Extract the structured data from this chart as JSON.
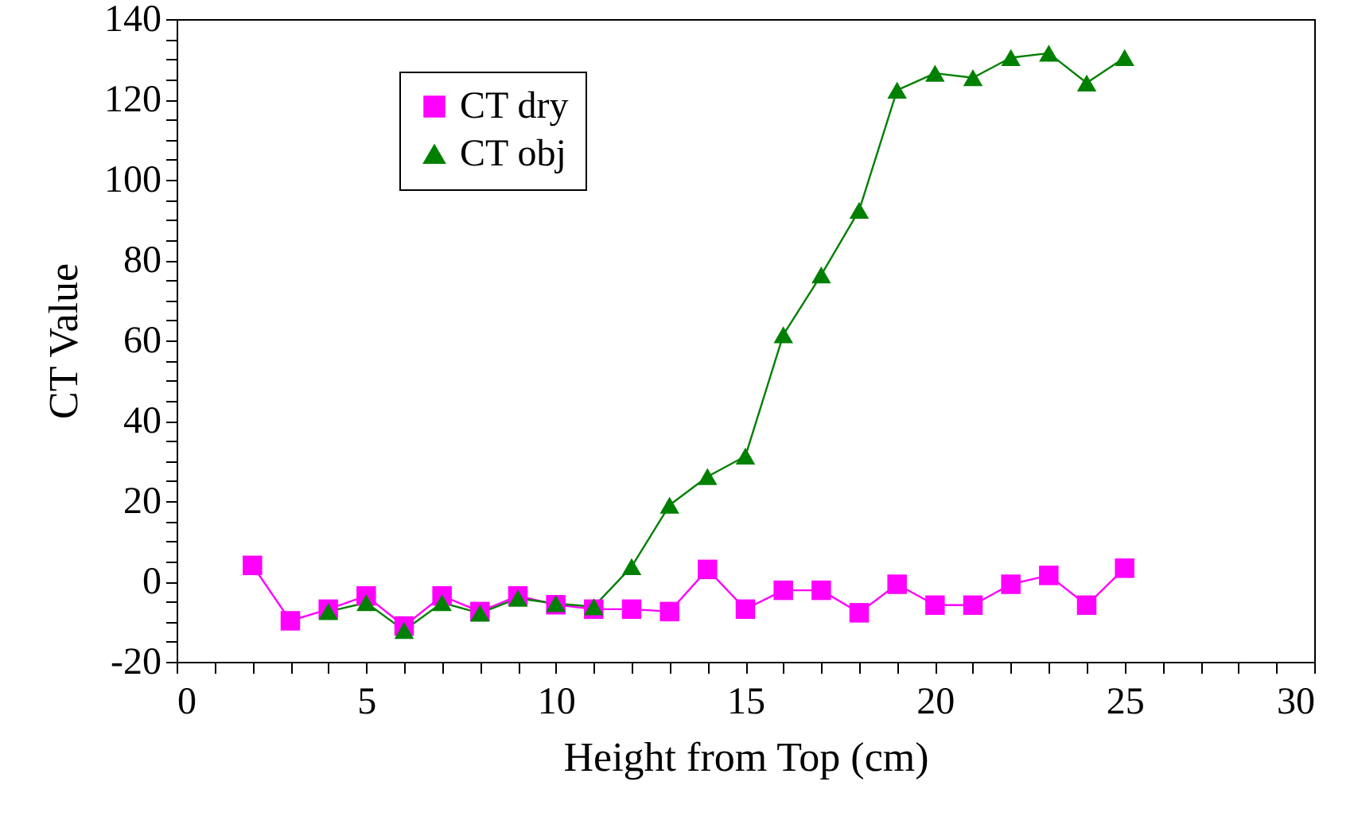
{
  "chart_data": {
    "type": "line",
    "xlabel": "Height  from Top (cm)",
    "ylabel": "CT Value",
    "x": [
      2,
      3,
      4,
      5,
      6,
      7,
      8,
      9,
      10,
      11,
      12,
      13,
      14,
      15,
      16,
      17,
      18,
      19,
      20,
      21,
      22,
      23,
      24,
      25
    ],
    "series": [
      {
        "name": "CT dry",
        "color": "#ff00ff",
        "marker": "square",
        "values": [
          4,
          -9.8,
          -6.9,
          -3.6,
          -11.1,
          -3.6,
          -7.5,
          -3.6,
          -5.8,
          -6.9,
          -6.9,
          -7.5,
          3,
          -6.9,
          -2.2,
          -2.2,
          -7.8,
          -0.7,
          -5.9,
          -5.9,
          -0.7,
          1.5,
          -5.9,
          3.3
        ]
      },
      {
        "name": "CT obj",
        "color": "#008000",
        "marker": "triangle",
        "values": [
          null,
          null,
          -7.5,
          -5.3,
          -12.2,
          -5.3,
          -7.9,
          -4.2,
          -5.5,
          -6.3,
          3.7,
          19,
          26.1,
          31.2,
          61.4,
          76.3,
          92.4,
          122.3,
          126.5,
          125.4,
          130.4,
          131.5,
          124.1,
          130.4
        ]
      }
    ],
    "xlim": [
      0,
      30
    ],
    "xticks": [
      0,
      {
        "value": 1,
        "label": null
      },
      {
        "value": 2,
        "label": null
      },
      {
        "value": 3,
        "label": null
      },
      {
        "value": 4,
        "label": null
      },
      5,
      {
        "value": 6,
        "label": null
      },
      {
        "value": 7,
        "label": null
      },
      {
        "value": 8,
        "label": null
      },
      {
        "value": 9,
        "label": null
      },
      10,
      {
        "value": 11,
        "label": null
      },
      {
        "value": 12,
        "label": null
      },
      {
        "value": 13,
        "label": null
      },
      {
        "value": 14,
        "label": null
      },
      15,
      {
        "value": 16,
        "label": null
      },
      {
        "value": 17,
        "label": null
      },
      {
        "value": 18,
        "label": null
      },
      {
        "value": 19,
        "label": null
      },
      20,
      {
        "value": 21,
        "label": null
      },
      {
        "value": 22,
        "label": null
      },
      {
        "value": 23,
        "label": null
      },
      {
        "value": 24,
        "label": null
      },
      25,
      {
        "value": 26,
        "label": null
      },
      {
        "value": 27,
        "label": null
      },
      {
        "value": 28,
        "label": null
      },
      {
        "value": 29,
        "label": null
      },
      30
    ],
    "ylim": [
      -20,
      140
    ],
    "yticks": [
      -20,
      {
        "value": -15,
        "label": null
      },
      {
        "value": -10,
        "label": null
      },
      {
        "value": -5,
        "label": null
      },
      0,
      {
        "value": 5,
        "label": null
      },
      {
        "value": 10,
        "label": null
      },
      {
        "value": 15,
        "label": null
      },
      20,
      {
        "value": 25,
        "label": null
      },
      {
        "value": 30,
        "label": null
      },
      {
        "value": 35,
        "label": null
      },
      40,
      {
        "value": 45,
        "label": null
      },
      {
        "value": 50,
        "label": null
      },
      {
        "value": 55,
        "label": null
      },
      60,
      {
        "value": 65,
        "label": null
      },
      {
        "value": 70,
        "label": null
      },
      {
        "value": 75,
        "label": null
      },
      80,
      {
        "value": 85,
        "label": null
      },
      {
        "value": 90,
        "label": null
      },
      {
        "value": 95,
        "label": null
      },
      100,
      {
        "value": 105,
        "label": null
      },
      {
        "value": 110,
        "label": null
      },
      {
        "value": 115,
        "label": null
      },
      120,
      {
        "value": 125,
        "label": null
      },
      {
        "value": 130,
        "label": null
      },
      {
        "value": 135,
        "label": null
      },
      140
    ],
    "grid": false,
    "legend": "top left",
    "line_style": "solid"
  }
}
